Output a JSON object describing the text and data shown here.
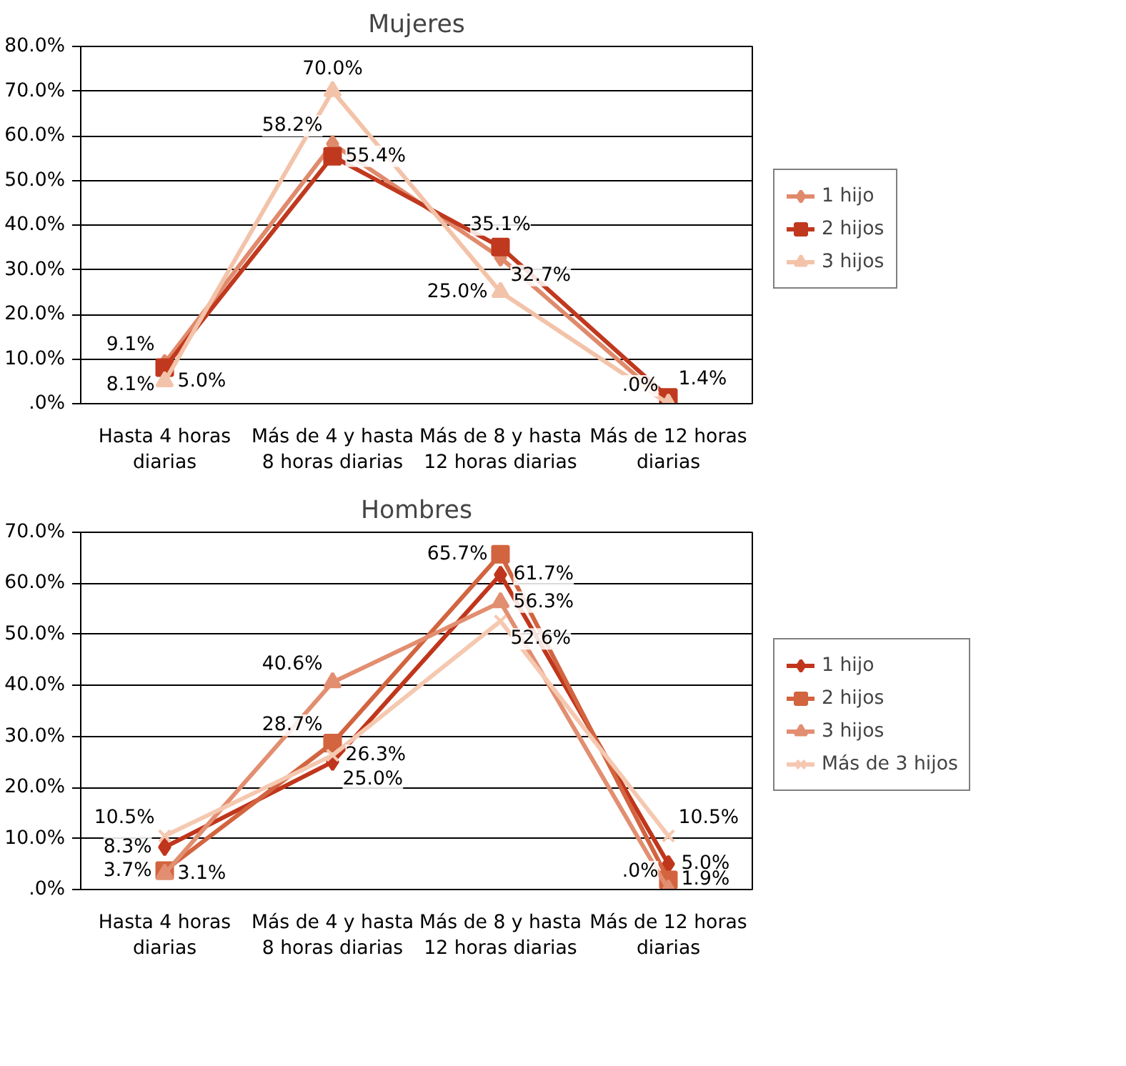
{
  "chart_data": [
    {
      "type": "line",
      "title": "Mujeres",
      "categories": [
        "Hasta 4 horas diarias",
        "Más de 4 y hasta 8 horas diarias",
        "Más de 8 y hasta 12 horas diarias",
        "Más de 12 horas diarias"
      ],
      "ylim": [
        0,
        80
      ],
      "yticks": [
        {
          "value": 0,
          "label": ".0%"
        },
        {
          "value": 10,
          "label": "10.0%"
        },
        {
          "value": 20,
          "label": "20.0%"
        },
        {
          "value": 30,
          "label": "30.0%"
        },
        {
          "value": 40,
          "label": "40.0%"
        },
        {
          "value": 50,
          "label": "50.0%"
        },
        {
          "value": 60,
          "label": "60.0%"
        },
        {
          "value": 70,
          "label": "70.0%"
        },
        {
          "value": 80,
          "label": "80.0%"
        }
      ],
      "grid": "y",
      "legend": "right",
      "series": [
        {
          "name": "1 hijo",
          "color": "#e08a6c",
          "marker": "diamond",
          "values": [
            9.1,
            58.2,
            32.7,
            0
          ],
          "value_labels": [
            "9.1%",
            "58.2%",
            "32.7%",
            null
          ]
        },
        {
          "name": "2 hijos",
          "color": "#c0391e",
          "marker": "square",
          "values": [
            8.1,
            55.4,
            35.1,
            1.4
          ],
          "value_labels": [
            "8.1%",
            "55.4%",
            "35.1%",
            "1.4%"
          ]
        },
        {
          "name": "3 hijos",
          "color": "#f3c3a9",
          "marker": "triangle",
          "values": [
            5.0,
            70.0,
            25.0,
            0
          ],
          "value_labels": [
            "5.0%",
            "70.0%",
            "25.0%",
            ".0%"
          ]
        }
      ]
    },
    {
      "type": "line",
      "title": "Hombres",
      "categories": [
        "Hasta 4 horas diarias",
        "Más de 4 y hasta 8 horas diarias",
        "Más de 8 y hasta 12 horas diarias",
        "Más de 12 horas diarias"
      ],
      "ylim": [
        0,
        70
      ],
      "yticks": [
        {
          "value": 0,
          "label": ".0%"
        },
        {
          "value": 10,
          "label": "10.0%"
        },
        {
          "value": 20,
          "label": "20.0%"
        },
        {
          "value": 30,
          "label": "30.0%"
        },
        {
          "value": 40,
          "label": "40.0%"
        },
        {
          "value": 50,
          "label": "50.0%"
        },
        {
          "value": 60,
          "label": "60.0%"
        },
        {
          "value": 70,
          "label": "70.0%"
        }
      ],
      "grid": "y",
      "legend": "right",
      "series": [
        {
          "name": "1 hijo",
          "color": "#c0361c",
          "marker": "diamond",
          "values": [
            8.3,
            25.0,
            61.7,
            5.0
          ],
          "value_labels": [
            "8.3%",
            "25.0%",
            "61.7%",
            "5.0%"
          ]
        },
        {
          "name": "2 hijos",
          "color": "#d2643f",
          "marker": "square",
          "values": [
            3.7,
            28.7,
            65.7,
            1.9
          ],
          "value_labels": [
            "3.7%",
            "28.7%",
            "65.7%",
            "1.9%"
          ]
        },
        {
          "name": "3 hijos",
          "color": "#e28e70",
          "marker": "triangle",
          "values": [
            3.1,
            40.6,
            56.3,
            0
          ],
          "value_labels": [
            "3.1%",
            "40.6%",
            "56.3%",
            ".0%"
          ]
        },
        {
          "name": "Más de 3 hijos",
          "color": "#f5c8b0",
          "marker": "cross",
          "values": [
            10.5,
            26.3,
            52.6,
            10.5
          ],
          "value_labels": [
            "10.5%",
            "26.3%",
            "52.6%",
            "10.5%"
          ]
        }
      ]
    }
  ]
}
